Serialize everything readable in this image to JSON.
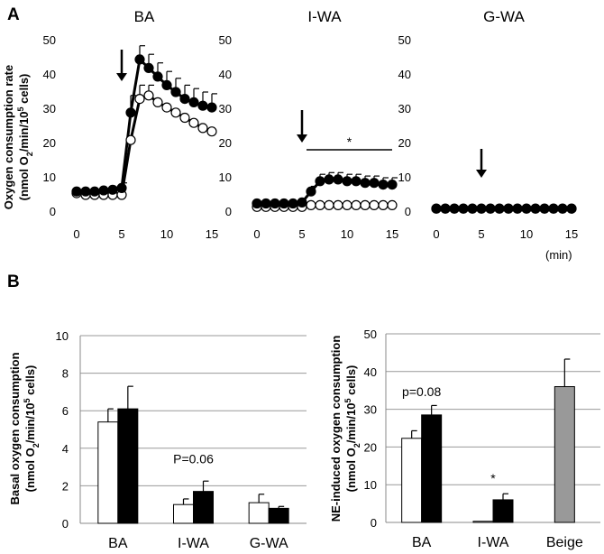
{
  "figure": {
    "panel_a_label": "A",
    "panel_b_label": "B",
    "panel_a_ylabel_line1": "Oxygen consumption rate",
    "panel_a_ylabel_line2_pre": "(nmol O",
    "panel_a_ylabel_line2_sub": "2",
    "panel_a_ylabel_line2_mid": "/min/10",
    "panel_a_ylabel_line2_sup": "5",
    "panel_a_ylabel_line2_post": " cells)",
    "xunit": "(min)",
    "basal_ylabel_line1": "Basal oxygen consumption",
    "basal_ylabel_line2_pre": "(nmol O",
    "basal_ylabel_line2_sub": "2",
    "basal_ylabel_line2_mid": "/min/10",
    "basal_ylabel_line2_sup": "5",
    "basal_ylabel_line2_post": " cells)",
    "ne_ylabel_line1": "NE-induced oxygen consumption",
    "ne_ylabel_line2_pre": "(nmol O",
    "ne_ylabel_line2_sub": "2",
    "ne_ylabel_line2_mid": "/min/10",
    "ne_ylabel_line2_sup": "5",
    "ne_ylabel_line2_post": " cells)"
  },
  "chart_data": [
    {
      "type": "line",
      "title": "BA",
      "xlim": [
        0,
        15
      ],
      "ylim": [
        0,
        50
      ],
      "xticks": [
        "0",
        "5",
        "10",
        "15"
      ],
      "yticks": [
        "0",
        "10",
        "20",
        "30",
        "40",
        "50"
      ],
      "arrow_x": 5,
      "arrow_label": "",
      "x": [
        0,
        1,
        2,
        3,
        4,
        5,
        6,
        7,
        8,
        9,
        10,
        11,
        12,
        13,
        14,
        15
      ],
      "series": [
        {
          "name": "filled",
          "marker": "filled",
          "values": [
            6,
            6,
            6,
            6.3,
            6.5,
            7,
            29,
            44.5,
            42,
            39.5,
            37,
            35,
            33,
            32,
            31,
            30.5
          ],
          "errors": [
            0,
            0,
            0,
            0.5,
            0.8,
            1.5,
            5,
            4,
            4,
            4,
            4,
            4,
            4,
            4,
            4,
            4
          ]
        },
        {
          "name": "open",
          "marker": "open",
          "values": [
            5.5,
            5,
            5,
            5,
            5,
            5,
            21,
            33,
            34,
            32,
            30.5,
            29,
            27.5,
            26,
            24.5,
            23.5
          ],
          "errors": [
            0,
            0,
            0,
            0,
            0,
            0,
            0,
            4,
            3,
            0,
            0,
            0,
            0,
            0,
            0,
            0
          ]
        }
      ]
    },
    {
      "type": "line",
      "title": "I-WA",
      "xlim": [
        0,
        15
      ],
      "ylim": [
        0,
        50
      ],
      "xticks": [
        "0",
        "5",
        "10",
        "15"
      ],
      "yticks": [
        "0",
        "10",
        "20",
        "30",
        "40",
        "50"
      ],
      "arrow_x": 5,
      "significance": "*",
      "sig_range": [
        5.5,
        15
      ],
      "x": [
        0,
        1,
        2,
        3,
        4,
        5,
        6,
        7,
        8,
        9,
        10,
        11,
        12,
        13,
        14,
        15
      ],
      "series": [
        {
          "name": "filled",
          "marker": "filled",
          "values": [
            2.5,
            2.5,
            2.5,
            2.5,
            2.5,
            2.8,
            6,
            9,
            9.5,
            9.5,
            9,
            9,
            8.5,
            8.5,
            8,
            8
          ],
          "errors": [
            0,
            0,
            0,
            0,
            0,
            0,
            1.5,
            2,
            2,
            2,
            2,
            2,
            2,
            2,
            2,
            2
          ]
        },
        {
          "name": "open",
          "marker": "open",
          "values": [
            1.5,
            1.5,
            1.5,
            1.5,
            1.5,
            1.5,
            2,
            2,
            2,
            2,
            2,
            2,
            2,
            2,
            2,
            2
          ],
          "errors": [
            0,
            0,
            0,
            0,
            0,
            0,
            0,
            0,
            0,
            0,
            0,
            0,
            0,
            0,
            0,
            0
          ]
        }
      ]
    },
    {
      "type": "line",
      "title": "G-WA",
      "xlim": [
        0,
        15
      ],
      "ylim": [
        0,
        50
      ],
      "xticks": [
        "0",
        "5",
        "10",
        "15"
      ],
      "yticks": [
        "0",
        "10",
        "20",
        "30",
        "40",
        "50"
      ],
      "arrow_x": 5,
      "x": [
        0,
        1,
        2,
        3,
        4,
        5,
        6,
        7,
        8,
        9,
        10,
        11,
        12,
        13,
        14,
        15
      ],
      "series": [
        {
          "name": "filled",
          "marker": "filled",
          "values": [
            1,
            1,
            1,
            1,
            1,
            1,
            1,
            1,
            1,
            1,
            1,
            1,
            1,
            1,
            1,
            1
          ],
          "errors": [
            0,
            0,
            0,
            0,
            0,
            0,
            0,
            0,
            0,
            0,
            0,
            0,
            0,
            0,
            0,
            0
          ]
        },
        {
          "name": "open",
          "marker": "open",
          "values": [
            1,
            1,
            1,
            1,
            1,
            1,
            1,
            1,
            1,
            1,
            1,
            1,
            1,
            1,
            1,
            1
          ],
          "errors": [
            0,
            0,
            0,
            0,
            0,
            0,
            0,
            0,
            0,
            0,
            0,
            0,
            0,
            0,
            0,
            0
          ]
        }
      ]
    },
    {
      "type": "bar",
      "title": "Basal oxygen consumption",
      "categories": [
        "BA",
        "I-WA",
        "G-WA"
      ],
      "ylim": [
        0,
        10
      ],
      "yticks": [
        "0",
        "2",
        "4",
        "6",
        "8",
        "10"
      ],
      "series": [
        {
          "name": "open",
          "color": "#ffffff",
          "values": [
            5.4,
            1.0,
            1.1
          ],
          "errors": [
            0.7,
            0.3,
            0.45
          ]
        },
        {
          "name": "filled",
          "color": "#000000",
          "values": [
            6.1,
            1.7,
            0.8
          ],
          "errors": [
            1.2,
            0.55,
            0.1
          ]
        }
      ],
      "annotations": [
        {
          "text": "P=0.06",
          "category": 1,
          "y": 3.2
        }
      ]
    },
    {
      "type": "bar",
      "title": "NE-induced oxygen consumption",
      "categories": [
        "BA",
        "I-WA",
        "Beige"
      ],
      "ylim": [
        0,
        50
      ],
      "yticks": [
        "0",
        "10",
        "20",
        "30",
        "40",
        "50"
      ],
      "series": [
        {
          "name": "open",
          "color": "#ffffff",
          "values": [
            22.3,
            0.3,
            null
          ],
          "errors": [
            2,
            0,
            0
          ]
        },
        {
          "name": "filled",
          "color": "#000000",
          "values": [
            28.5,
            6,
            null
          ],
          "errors": [
            2.5,
            1.6,
            0
          ]
        },
        {
          "name": "beige",
          "color": "#999999",
          "values": [
            null,
            null,
            36
          ],
          "errors": [
            0,
            0,
            7.3
          ]
        }
      ],
      "annotations": [
        {
          "text": "p=0.08",
          "category": 0,
          "y": 33.5
        },
        {
          "text": "*",
          "category": 1,
          "y": 10.5
        }
      ]
    }
  ]
}
